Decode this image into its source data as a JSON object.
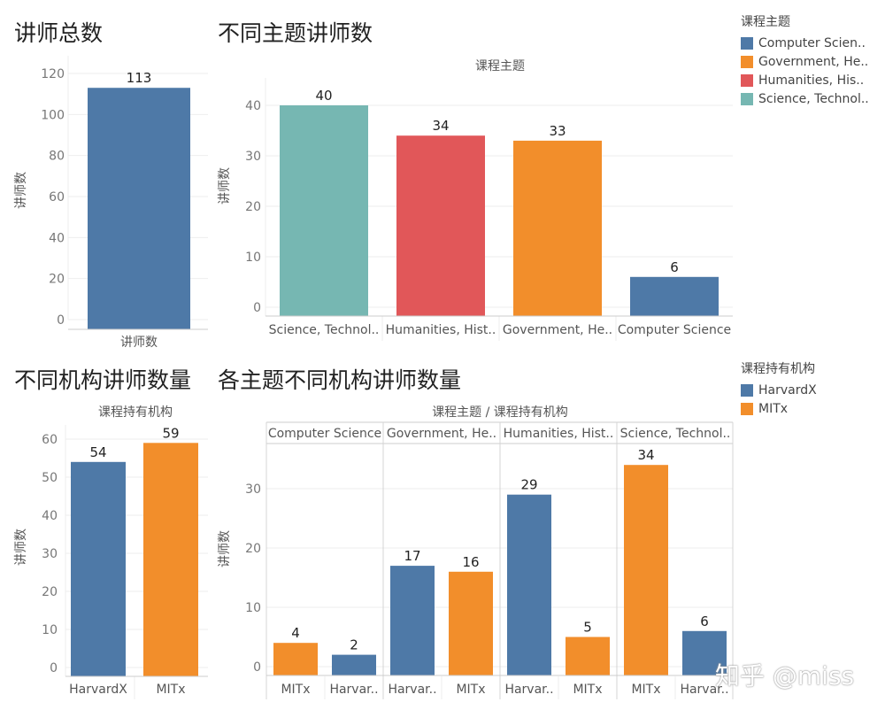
{
  "colors": {
    "blue": "#4e79a7",
    "orange": "#f28e2b",
    "red": "#e15759",
    "teal": "#76b7b2"
  },
  "titles": {
    "total": "讲师总数",
    "by_topic": "不同主题讲师数",
    "by_org": "不同机构讲师数量",
    "by_topic_org": "各主题不同机构讲师数量"
  },
  "legend_topic": {
    "title": "课程主题",
    "items": [
      {
        "label": "Computer Scien..",
        "color": "#4e79a7"
      },
      {
        "label": "Government, He..",
        "color": "#f28e2b"
      },
      {
        "label": "Humanities, His..",
        "color": "#e15759"
      },
      {
        "label": "Science, Technol..",
        "color": "#76b7b2"
      }
    ]
  },
  "legend_org": {
    "title": "课程持有机构",
    "items": [
      {
        "label": "HarvardX",
        "color": "#4e79a7"
      },
      {
        "label": "MITx",
        "color": "#f28e2b"
      }
    ]
  },
  "watermark": "知乎 @miss",
  "chart_data": [
    {
      "id": "total",
      "type": "bar",
      "title": "讲师总数",
      "ylabel": "讲师数",
      "categories": [
        "讲师数"
      ],
      "values": [
        113
      ],
      "yticks": [
        0,
        20,
        40,
        60,
        80,
        100,
        120
      ],
      "ylim": [
        0,
        120
      ]
    },
    {
      "id": "by_topic",
      "type": "bar",
      "title": "不同主题讲师数",
      "header": "课程主题",
      "ylabel": "讲师数",
      "categories": [
        "Science, Technol..",
        "Humanities, Hist..",
        "Government, He..",
        "Computer Science"
      ],
      "values": [
        40,
        34,
        33,
        6
      ],
      "colors": [
        "#76b7b2",
        "#e15759",
        "#f28e2b",
        "#4e79a7"
      ],
      "yticks": [
        0,
        10,
        20,
        30,
        40
      ],
      "ylim": [
        0,
        44
      ]
    },
    {
      "id": "by_org",
      "type": "bar",
      "title": "不同机构讲师数量",
      "header": "课程持有机构",
      "ylabel": "讲师数",
      "categories": [
        "HarvardX",
        "MITx"
      ],
      "values": [
        54,
        59
      ],
      "colors": [
        "#4e79a7",
        "#f28e2b"
      ],
      "yticks": [
        0,
        10,
        20,
        30,
        40,
        50,
        60
      ],
      "ylim": [
        0,
        60
      ]
    },
    {
      "id": "by_topic_org",
      "type": "bar",
      "title": "各主题不同机构讲师数量",
      "header": "课程主题 / 课程持有机构",
      "ylabel": "讲师数",
      "panels": [
        {
          "label": "Computer Science",
          "bars": [
            {
              "category": "MITx",
              "value": 4,
              "color": "#f28e2b"
            },
            {
              "category": "Harvar..",
              "value": 2,
              "color": "#4e79a7"
            }
          ]
        },
        {
          "label": "Government, He..",
          "bars": [
            {
              "category": "Harvar..",
              "value": 17,
              "color": "#4e79a7"
            },
            {
              "category": "MITx",
              "value": 16,
              "color": "#f28e2b"
            }
          ]
        },
        {
          "label": "Humanities, Hist..",
          "bars": [
            {
              "category": "Harvar..",
              "value": 29,
              "color": "#4e79a7"
            },
            {
              "category": "MITx",
              "value": 5,
              "color": "#f28e2b"
            }
          ]
        },
        {
          "label": "Science, Technol..",
          "bars": [
            {
              "category": "MITx",
              "value": 34,
              "color": "#f28e2b"
            },
            {
              "category": "Harvar..",
              "value": 6,
              "color": "#4e79a7"
            }
          ]
        }
      ],
      "yticks": [
        0,
        10,
        20,
        30
      ],
      "ylim": [
        0,
        36
      ]
    }
  ]
}
